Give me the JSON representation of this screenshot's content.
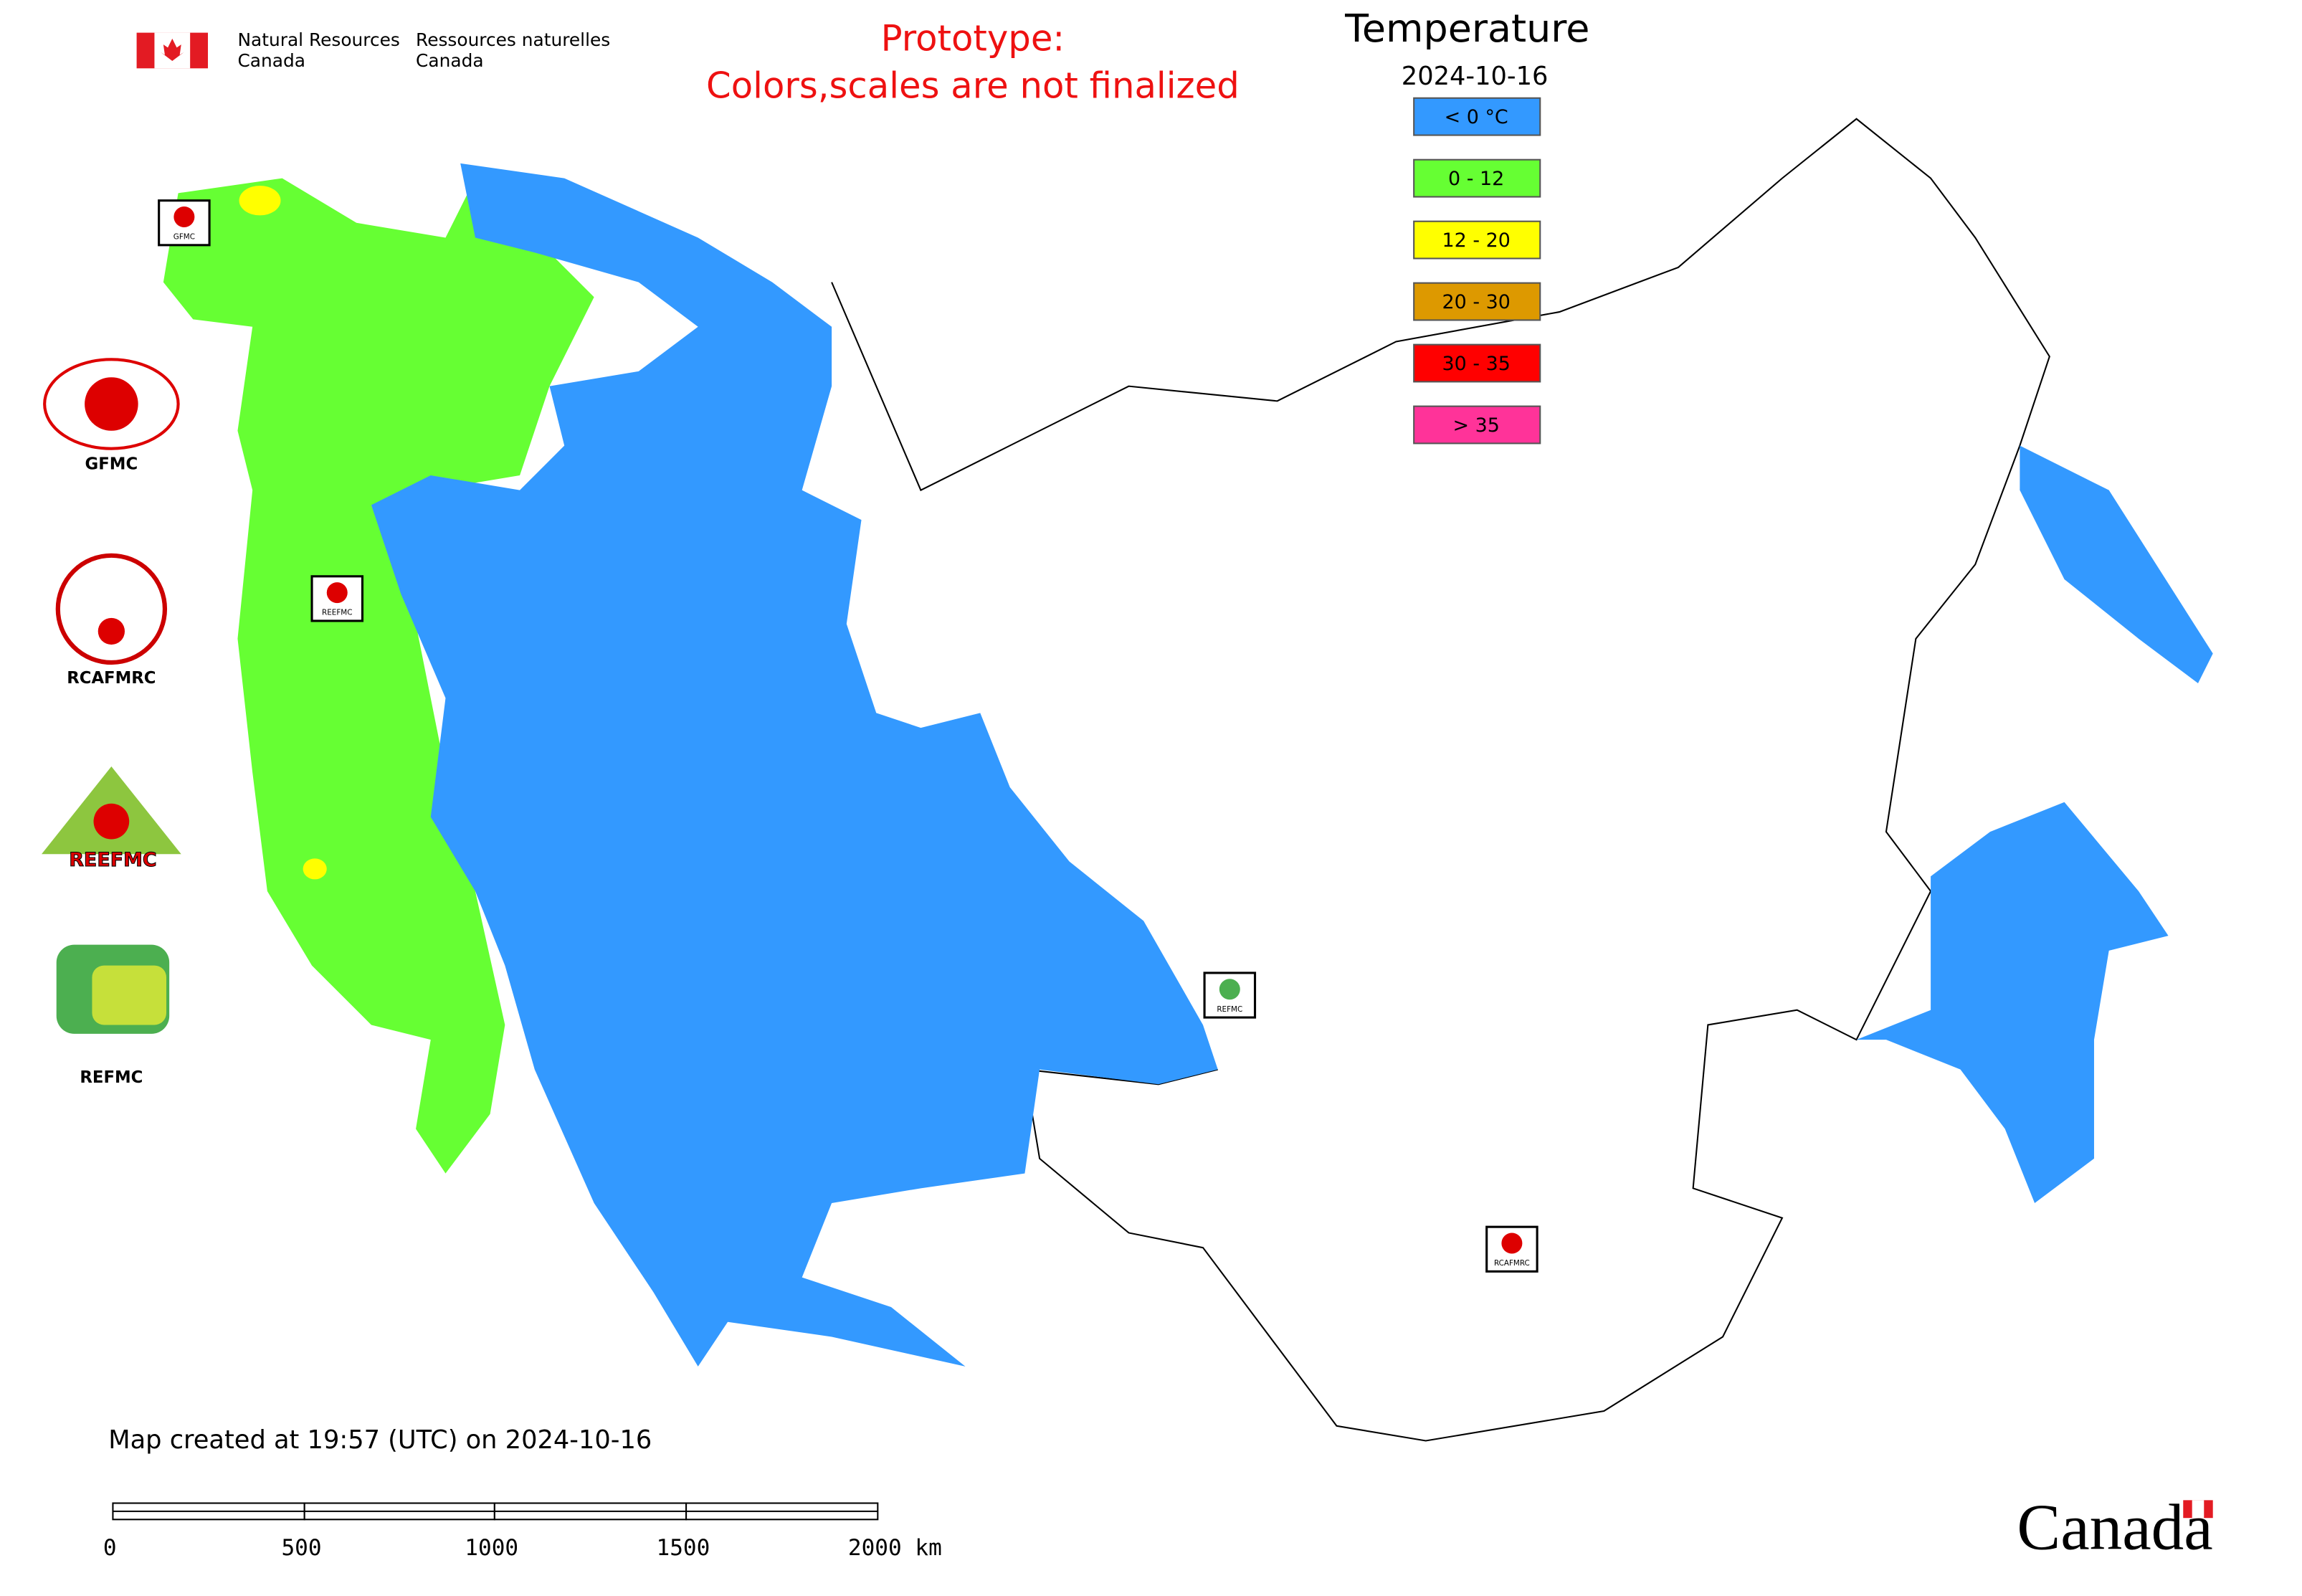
{
  "header": {
    "org_en": [
      "Natural Resources",
      "Canada"
    ],
    "org_fr": [
      "Ressources naturelles",
      "Canada"
    ],
    "warning": [
      "Prototype:",
      "Colors,scales are not finalized"
    ]
  },
  "legend": {
    "title": "Temperature",
    "date": "2024-10-16",
    "items": [
      {
        "label": "< 0 °C",
        "color": "#3399ff"
      },
      {
        "label": "0 - 12",
        "color": "#66ff33"
      },
      {
        "label": "12 - 20",
        "color": "#ffff00"
      },
      {
        "label": "20 - 30",
        "color": "#dd9900"
      },
      {
        "label": "30 - 35",
        "color": "#ff0000"
      },
      {
        "label": "> 35",
        "color": "#ff3399"
      }
    ]
  },
  "logos": [
    "GFMC",
    "RCAFMRC",
    "REEFMC",
    "REFMC"
  ],
  "markers": [
    "GFMC",
    "REEFMC",
    "REFMC",
    "RCAFMRC"
  ],
  "footer": {
    "created": "Map created at 19:57 (UTC) on 2024-10-16",
    "scale_labels": [
      "0",
      "500",
      "1000",
      "1500",
      "2000 km"
    ],
    "wordmark": "Canada"
  }
}
